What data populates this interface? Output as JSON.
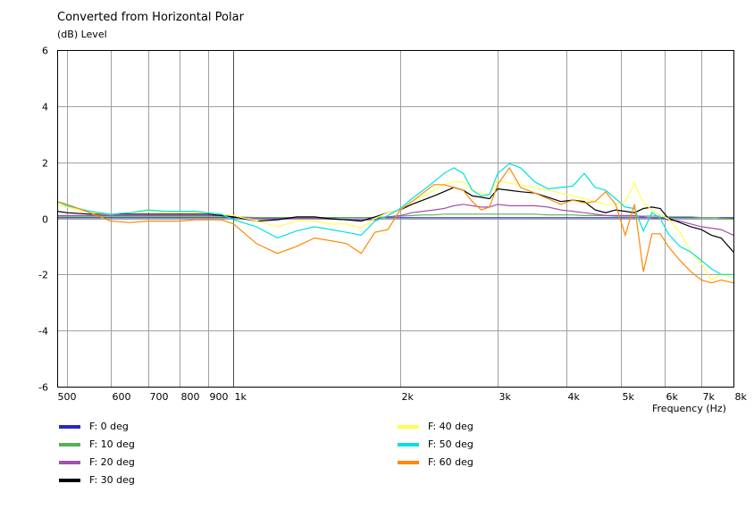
{
  "chart_data": {
    "type": "line",
    "title": "Converted from Horizontal Polar",
    "ylabel": "(dB)  Level",
    "xlabel": "Frequency  (Hz)",
    "xscale": "log",
    "xlim": [
      480,
      8000
    ],
    "ylim": [
      -6,
      6
    ],
    "grid": true,
    "legend_position": "bottom",
    "x_ticks": [
      {
        "value": 500,
        "label": "500"
      },
      {
        "value": 600,
        "label": "600"
      },
      {
        "value": 700,
        "label": "700"
      },
      {
        "value": 800,
        "label": "800"
      },
      {
        "value": 900,
        "label": "900"
      },
      {
        "value": 1000,
        "label": "1k"
      },
      {
        "value": 2000,
        "label": "2k"
      },
      {
        "value": 3000,
        "label": "3k"
      },
      {
        "value": 4000,
        "label": "4k"
      },
      {
        "value": 5000,
        "label": "5k"
      },
      {
        "value": 6000,
        "label": "6k"
      },
      {
        "value": 7000,
        "label": "7k"
      },
      {
        "value": 8000,
        "label": "8k"
      }
    ],
    "y_ticks": [
      -6,
      -4,
      -2,
      0,
      2,
      4,
      6
    ],
    "x": [
      480,
      500,
      550,
      600,
      650,
      700,
      750,
      800,
      850,
      900,
      950,
      1000,
      1100,
      1200,
      1300,
      1400,
      1500,
      1600,
      1700,
      1800,
      1900,
      2000,
      2100,
      2200,
      2300,
      2400,
      2500,
      2600,
      2700,
      2800,
      2900,
      3000,
      3150,
      3300,
      3500,
      3700,
      3900,
      4100,
      4300,
      4500,
      4700,
      4900,
      5100,
      5300,
      5500,
      5700,
      5900,
      6100,
      6400,
      6700,
      7000,
      7300,
      7600,
      8000
    ],
    "series": [
      {
        "name": "F: 0 deg",
        "color": "#2828c8",
        "values": [
          0.02,
          0.02,
          0.02,
          0.02,
          0.02,
          0.02,
          0.02,
          0.02,
          0.02,
          0.02,
          0.02,
          0.02,
          0.02,
          0.02,
          0.02,
          0.02,
          0.02,
          0.02,
          0.02,
          0.02,
          0.02,
          0.02,
          0.02,
          0.02,
          0.02,
          0.02,
          0.02,
          0.02,
          0.02,
          0.02,
          0.02,
          0.02,
          0.02,
          0.02,
          0.02,
          0.02,
          0.02,
          0.02,
          0.02,
          0.02,
          0.02,
          0.02,
          0.02,
          0.02,
          0.02,
          0.02,
          0.02,
          0.02,
          0.02,
          0.02,
          0.02,
          0.02,
          0.02,
          0.02
        ]
      },
      {
        "name": "F: 10 deg",
        "color": "#58b058",
        "values": [
          0.05,
          0.05,
          0.05,
          0.05,
          0.05,
          0.05,
          0.05,
          0.05,
          0.05,
          0.05,
          0.05,
          0.05,
          0.03,
          0.03,
          0.03,
          0.03,
          0.03,
          0.03,
          0.03,
          0.03,
          0.05,
          0.08,
          0.1,
          0.12,
          0.12,
          0.15,
          0.15,
          0.15,
          0.15,
          0.15,
          0.15,
          0.15,
          0.15,
          0.15,
          0.15,
          0.12,
          0.12,
          0.12,
          0.1,
          0.1,
          0.1,
          0.08,
          0.08,
          0.08,
          0.08,
          0.08,
          0.08,
          0.05,
          0.05,
          0.05,
          0.03,
          0.03,
          0.0,
          -0.02
        ]
      },
      {
        "name": "F: 20 deg",
        "color": "#a050b0",
        "values": [
          0.1,
          0.1,
          0.1,
          0.1,
          0.1,
          0.1,
          0.1,
          0.1,
          0.1,
          0.1,
          0.1,
          0.05,
          0.0,
          -0.02,
          0.0,
          0.0,
          -0.02,
          -0.05,
          -0.05,
          -0.05,
          0.05,
          0.1,
          0.2,
          0.25,
          0.3,
          0.35,
          0.45,
          0.5,
          0.45,
          0.4,
          0.4,
          0.5,
          0.45,
          0.45,
          0.45,
          0.4,
          0.3,
          0.25,
          0.2,
          0.15,
          0.1,
          0.1,
          0.1,
          0.1,
          0.05,
          0.0,
          0.0,
          -0.05,
          -0.1,
          -0.2,
          -0.3,
          -0.35,
          -0.4,
          -0.6
        ]
      },
      {
        "name": "F: 30 deg",
        "color": "#000000",
        "values": [
          0.25,
          0.2,
          0.15,
          0.15,
          0.15,
          0.15,
          0.15,
          0.15,
          0.15,
          0.15,
          0.1,
          0.05,
          -0.1,
          -0.05,
          0.05,
          0.05,
          -0.02,
          -0.05,
          -0.1,
          0.05,
          0.2,
          0.3,
          0.5,
          0.65,
          0.8,
          0.95,
          1.1,
          1.0,
          0.8,
          0.75,
          0.7,
          1.05,
          1.0,
          0.95,
          0.9,
          0.75,
          0.6,
          0.65,
          0.6,
          0.3,
          0.2,
          0.3,
          0.25,
          0.2,
          0.35,
          0.4,
          0.35,
          0.0,
          -0.15,
          -0.3,
          -0.4,
          -0.6,
          -0.7,
          -1.2
        ]
      },
      {
        "name": "F: 40 deg",
        "color": "#ffff50",
        "values": [
          0.5,
          0.4,
          0.2,
          0.15,
          0.2,
          0.25,
          0.2,
          0.2,
          0.2,
          0.2,
          0.15,
          0.1,
          -0.1,
          -0.3,
          -0.1,
          -0.1,
          -0.2,
          -0.2,
          -0.35,
          0.0,
          0.2,
          0.3,
          0.6,
          0.8,
          1.0,
          1.2,
          1.3,
          1.3,
          1.0,
          0.9,
          0.85,
          1.35,
          1.25,
          1.2,
          1.1,
          1.0,
          0.9,
          0.8,
          0.7,
          0.6,
          0.5,
          0.5,
          0.6,
          1.25,
          0.55,
          0.3,
          0.1,
          0.0,
          -0.5,
          -1.2,
          -1.6,
          -2.2,
          -2.0,
          -2.1
        ]
      },
      {
        "name": "F: 50 deg",
        "color": "#00e0e0",
        "values": [
          0.6,
          0.45,
          0.25,
          0.15,
          0.2,
          0.3,
          0.25,
          0.25,
          0.25,
          0.2,
          0.15,
          -0.05,
          -0.3,
          -0.7,
          -0.45,
          -0.3,
          -0.4,
          -0.5,
          -0.6,
          -0.1,
          0.1,
          0.35,
          0.7,
          1.0,
          1.3,
          1.6,
          1.8,
          1.6,
          1.0,
          0.8,
          0.85,
          1.6,
          1.95,
          1.8,
          1.3,
          1.05,
          1.1,
          1.15,
          1.6,
          1.1,
          1.0,
          0.7,
          0.4,
          0.35,
          -0.45,
          0.2,
          0.0,
          -0.55,
          -1.0,
          -1.2,
          -1.5,
          -1.8,
          -2.0,
          -2.0
        ]
      },
      {
        "name": "F: 60 deg",
        "color": "#ff8800",
        "values": [
          0.6,
          0.5,
          0.2,
          -0.1,
          -0.15,
          -0.1,
          -0.1,
          -0.1,
          -0.05,
          -0.05,
          -0.05,
          -0.2,
          -0.9,
          -1.25,
          -1.0,
          -0.7,
          -0.8,
          -0.9,
          -1.25,
          -0.5,
          -0.4,
          0.3,
          0.6,
          0.9,
          1.2,
          1.2,
          1.1,
          1.0,
          0.6,
          0.3,
          0.4,
          1.2,
          1.8,
          1.1,
          0.9,
          0.7,
          0.5,
          0.65,
          0.55,
          0.6,
          0.95,
          0.5,
          -0.6,
          0.5,
          -1.9,
          -0.55,
          -0.55,
          -1.0,
          -1.5,
          -1.9,
          -2.2,
          -2.3,
          -2.2,
          -2.3
        ]
      }
    ]
  }
}
